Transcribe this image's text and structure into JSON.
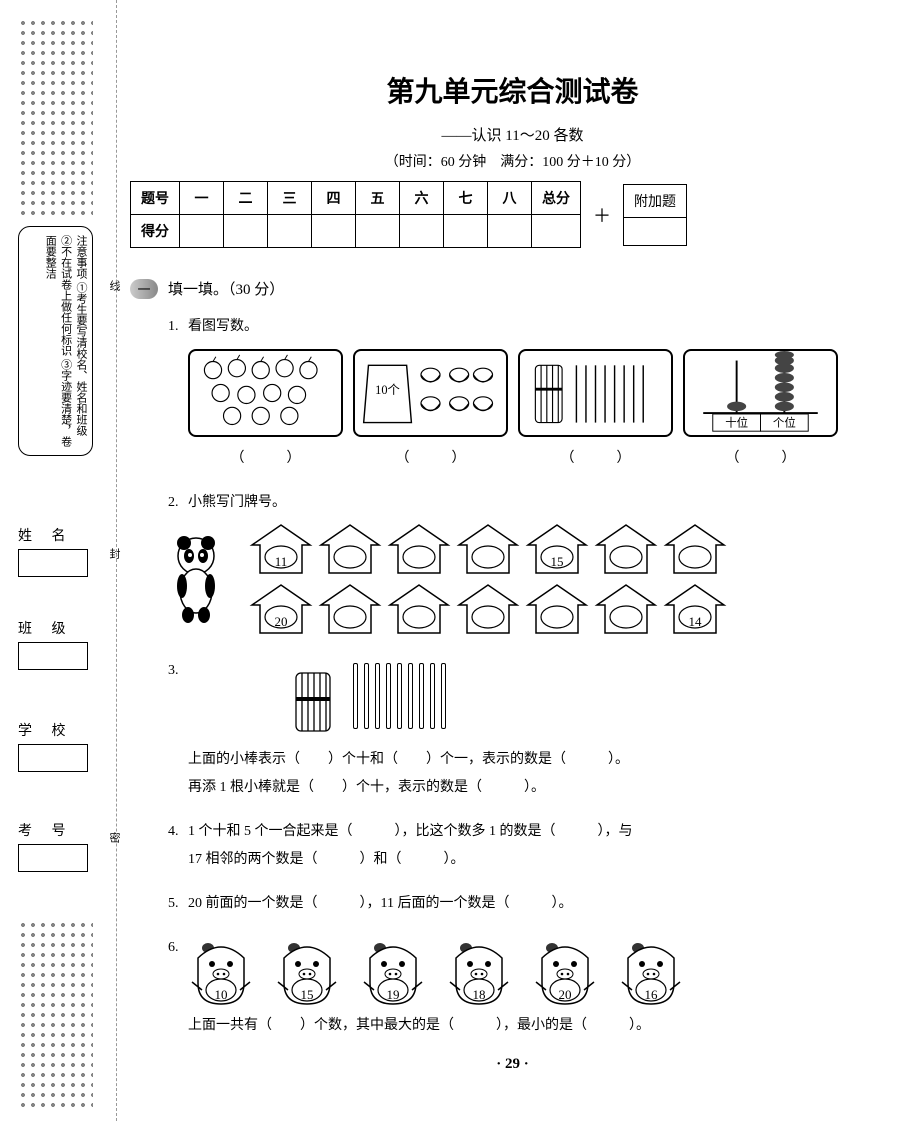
{
  "margin": {
    "rules_header": "注意事项",
    "rules": [
      "①考生要写清校名、姓名和班级",
      "②不在试卷上做任何标识",
      "③字迹要清楚，卷面要整洁"
    ],
    "fold_labels": [
      "线",
      "封",
      "密"
    ],
    "fields": {
      "name": "姓 名",
      "class": "班 级",
      "school": "学 校",
      "exam_no": "考 号"
    }
  },
  "header": {
    "title": "第九单元综合测试卷",
    "subtitle": "——认识 11～20 各数",
    "time_info": "（时间：60 分钟　满分：100 分＋10 分）"
  },
  "score_table": {
    "row_labels": [
      "题号",
      "得分"
    ],
    "columns": [
      "一",
      "二",
      "三",
      "四",
      "五",
      "六",
      "七",
      "八",
      "总分"
    ],
    "plus": "＋",
    "extra_label": "附加题"
  },
  "section1": {
    "badge": "一",
    "title": "填一填。（30 分）"
  },
  "q1": {
    "num": "1.",
    "text": "看图写数。",
    "box_labels": [
      "",
      "10个",
      "",
      ""
    ],
    "abacus_labels": [
      "十位",
      "个位"
    ],
    "answers": [
      "（　　　）",
      "（　　　）",
      "（　　　）",
      "（　　　）"
    ]
  },
  "q2": {
    "num": "2.",
    "text": "小熊写门牌号。",
    "row1": [
      "11",
      "",
      "",
      "",
      "15",
      "",
      ""
    ],
    "row2": [
      "20",
      "",
      "",
      "",
      "",
      "",
      "14"
    ]
  },
  "q3": {
    "num": "3.",
    "stick_count_singles": 9,
    "line1": "上面的小棒表示（　　）个十和（　　）个一，表示的数是（　　　）。",
    "line2": "再添 1 根小棒就是（　　）个十，表示的数是（　　　）。"
  },
  "q4": {
    "num": "4.",
    "line1": "1 个十和 5 个一合起来是（　　　），比这个数多 1 的数是（　　　），与",
    "line2": "17 相邻的两个数是（　　　）和（　　　）。"
  },
  "q5": {
    "num": "5.",
    "text": "20 前面的一个数是（　　　），11 后面的一个数是（　　　）。"
  },
  "q6": {
    "num": "6.",
    "pigs": [
      "10",
      "15",
      "19",
      "18",
      "20",
      "16"
    ],
    "text": "上面一共有（　　）个数，其中最大的是（　　　），最小的是（　　　）。"
  },
  "page_number": "· 29 ·"
}
